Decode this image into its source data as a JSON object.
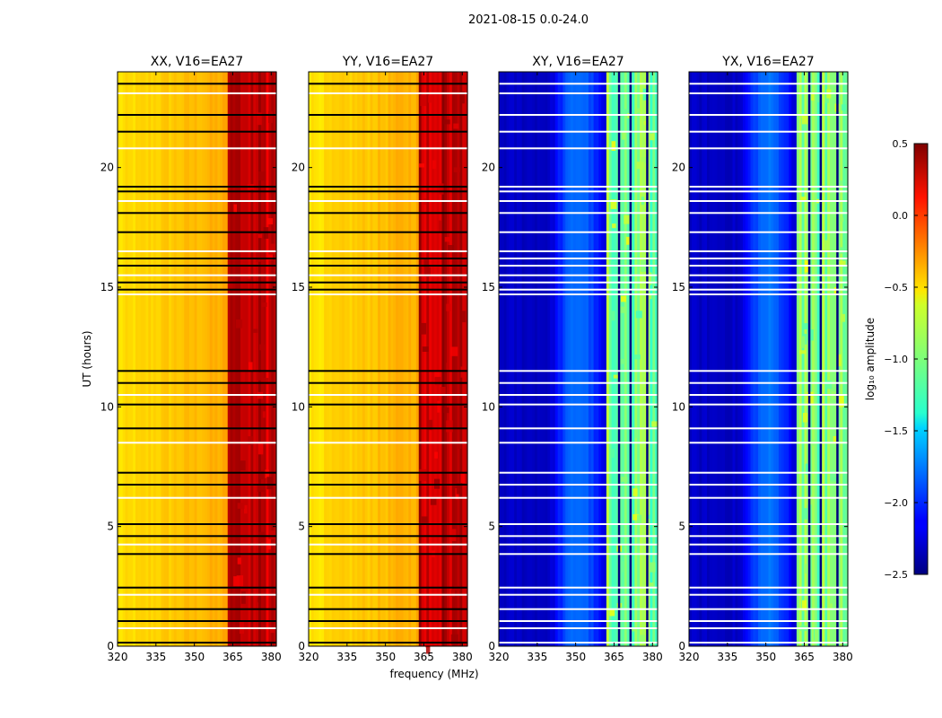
{
  "chart_data": {
    "type": "heatmap",
    "title": "2021-08-15 0.0-24.0",
    "xlabel": "frequency (MHz)",
    "ylabel": "UT (hours)",
    "xlim": [
      320,
      382
    ],
    "ylim": [
      0,
      24
    ],
    "xticks": [
      320,
      335,
      350,
      365,
      380
    ],
    "yticks": [
      0,
      5,
      10,
      15,
      20
    ],
    "panels": [
      {
        "name": "XX",
        "title": "XX, V16=EA27",
        "scheme": "parallel",
        "band_level": 0.35,
        "base_level": -0.55
      },
      {
        "name": "YY",
        "title": "YY, V16=EA27",
        "scheme": "parallel",
        "band_level": 0.35,
        "base_level": -0.55
      },
      {
        "name": "XY",
        "title": "XY, V16=EA27",
        "scheme": "cross",
        "band_level": -1.0,
        "base_level": -2.3
      },
      {
        "name": "YX",
        "title": "YX, V16=EA27",
        "scheme": "cross",
        "band_level": -1.0,
        "base_level": -2.3
      }
    ],
    "flagged_hours": [
      0.15,
      0.75,
      1.05,
      1.55,
      2.15,
      2.45,
      3.85,
      4.25,
      4.6,
      5.1,
      6.2,
      6.75,
      7.25,
      8.5,
      9.1,
      10.1,
      10.5,
      11.0,
      11.5,
      14.7,
      14.9,
      15.2,
      15.5,
      15.9,
      16.2,
      16.5,
      17.3,
      18.1,
      18.6,
      19.0,
      19.2,
      20.8,
      21.5,
      22.2,
      23.1,
      23.5
    ],
    "colorbar": {
      "label": "log₁₀ amplitude",
      "min": -2.5,
      "max": 0.5,
      "ticks": [
        0.5,
        0.0,
        -0.5,
        -1.0,
        -1.5,
        -2.0,
        -2.5
      ],
      "tick_labels": [
        "0.5",
        "0.0",
        "−0.5",
        "−1.0",
        "−1.5",
        "−2.0",
        "−2.5"
      ]
    }
  }
}
